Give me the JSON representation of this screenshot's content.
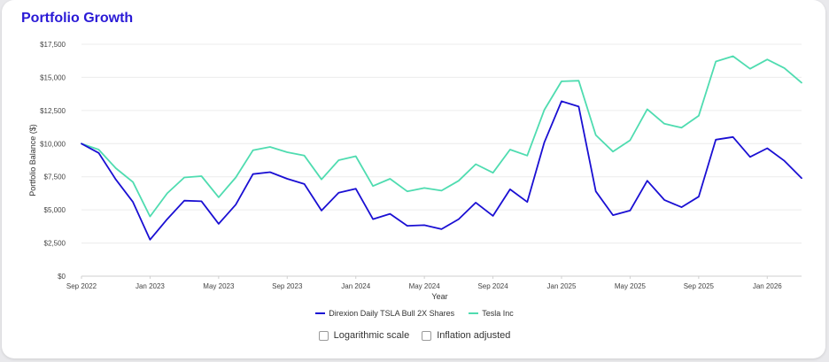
{
  "title": "Portfolio Growth",
  "colors": {
    "title": "#2a1ad6",
    "series_1": "#1a0fd3",
    "series_2": "#4fdcb0",
    "grid": "#ececec"
  },
  "options": {
    "log_label": "Logarithmic scale",
    "inflation_label": "Inflation adjusted",
    "log_checked": false,
    "inflation_checked": false
  },
  "chart_data": {
    "type": "line",
    "title": "Portfolio Growth",
    "xlabel": "Year",
    "ylabel": "Portfolio Balance ($)",
    "ylim": [
      0,
      17500
    ],
    "grid": true,
    "legend_position": "bottom",
    "y_ticks": [
      0,
      2500,
      5000,
      7500,
      10000,
      12500,
      15000,
      17500
    ],
    "y_tick_labels": [
      "$0",
      "$2,500",
      "$5,000",
      "$7,500",
      "$10,000",
      "$12,500",
      "$15,000",
      "$17,500"
    ],
    "x": [
      "2022-09",
      "2022-10",
      "2022-11",
      "2022-12",
      "2023-01",
      "2023-02",
      "2023-03",
      "2023-04",
      "2023-05",
      "2023-06",
      "2023-07",
      "2023-08",
      "2023-09",
      "2023-10",
      "2023-11",
      "2023-12",
      "2024-01",
      "2024-02",
      "2024-03",
      "2024-04",
      "2024-05",
      "2024-06",
      "2024-07",
      "2024-08",
      "2024-09",
      "2024-10",
      "2024-11",
      "2024-12",
      "2025-01",
      "2025-02",
      "2025-03",
      "2025-04",
      "2025-05",
      "2025-06",
      "2025-07",
      "2025-08",
      "2025-09",
      "2025-10",
      "2025-11",
      "2025-12",
      "2026-01",
      "2026-02",
      "2026-03"
    ],
    "x_tick_labels": [
      {
        "x": "2022-09",
        "label": "Sep 2022"
      },
      {
        "x": "2023-01",
        "label": "Jan 2023"
      },
      {
        "x": "2023-05",
        "label": "May 2023"
      },
      {
        "x": "2023-09",
        "label": "Sep 2023"
      },
      {
        "x": "2024-01",
        "label": "Jan 2024"
      },
      {
        "x": "2024-05",
        "label": "May 2024"
      },
      {
        "x": "2024-09",
        "label": "Sep 2024"
      },
      {
        "x": "2025-01",
        "label": "Jan 2025"
      },
      {
        "x": "2025-05",
        "label": "May 2025"
      },
      {
        "x": "2025-09",
        "label": "Sep 2025"
      },
      {
        "x": "2026-01",
        "label": "Jan 2026"
      }
    ],
    "series": [
      {
        "name": "Direxion Daily TSLA Bull 2X Shares",
        "color": "#1a0fd3",
        "values": [
          10000,
          9300,
          7300,
          5600,
          2750,
          4300,
          5700,
          5650,
          3950,
          5400,
          7700,
          7850,
          7350,
          6950,
          4950,
          6300,
          6600,
          4300,
          4700,
          3800,
          3850,
          3550,
          4300,
          5550,
          4550,
          6550,
          5600,
          10100,
          13200,
          12800,
          6400,
          4600,
          4950,
          7200,
          5750,
          5200,
          6000,
          10300,
          10500,
          9000,
          9650,
          8700,
          7400
        ]
      },
      {
        "name": "Tesla Inc",
        "color": "#4fdcb0",
        "values": [
          10000,
          9550,
          8150,
          7100,
          4500,
          6250,
          7450,
          7550,
          5950,
          7450,
          9500,
          9750,
          9350,
          9100,
          7300,
          8750,
          9050,
          6800,
          7350,
          6400,
          6650,
          6450,
          7200,
          8450,
          7800,
          9550,
          9100,
          12550,
          14700,
          14750,
          10650,
          9400,
          10250,
          12600,
          11500,
          11200,
          12100,
          16200,
          16600,
          15650,
          16350,
          15700,
          14600
        ]
      }
    ]
  }
}
